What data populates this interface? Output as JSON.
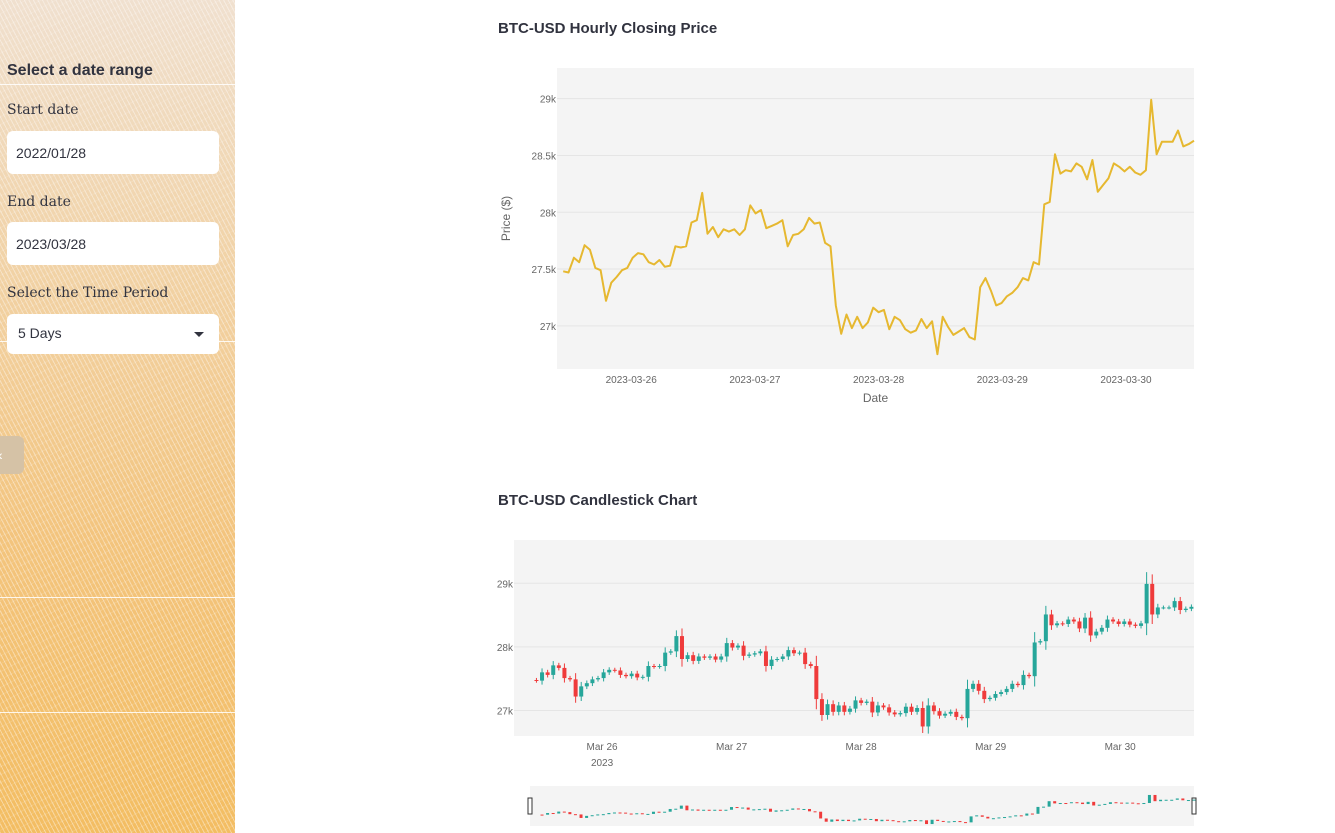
{
  "sidebar": {
    "title": "Select a date range",
    "start_date": {
      "label": "Start date",
      "value": "2022/01/28"
    },
    "end_date": {
      "label": "End date",
      "value": "2023/03/28"
    },
    "time_period": {
      "label": "Select the Time Period",
      "value": "5 Days"
    },
    "collapse_icon": "chevron-left-icon"
  },
  "chart_data": [
    {
      "type": "line",
      "title": "BTC-USD Hourly Closing Price",
      "xlabel": "Date",
      "ylabel": "Price ($)",
      "x_tick_labels": [
        "2023-03-26",
        "2023-03-27",
        "2023-03-28",
        "2023-03-29",
        "2023-03-30"
      ],
      "y_tick_labels": [
        "27k",
        "27.5k",
        "28k",
        "28.5k",
        "29k"
      ],
      "y_ticks": [
        27000,
        27500,
        28000,
        28500,
        29000
      ],
      "xlim_days": [
        -0.6,
        4.55
      ],
      "ylim": [
        26620,
        29270
      ],
      "line_color": "#e6b830",
      "plot_background": "#f4f4f4",
      "grid": true,
      "series": [
        {
          "values": [
            27480,
            27470,
            27600,
            27560,
            27710,
            27670,
            27510,
            27490,
            27220,
            27380,
            27430,
            27490,
            27510,
            27600,
            27640,
            27630,
            27560,
            27540,
            27580,
            27520,
            27530,
            27700,
            27690,
            27700,
            27910,
            27930,
            28170,
            27810,
            27870,
            27780,
            27850,
            27830,
            27850,
            27800,
            27850,
            28060,
            27990,
            28020,
            27860,
            27880,
            27900,
            27930,
            27700,
            27800,
            27810,
            27850,
            27950,
            27900,
            27910,
            27730,
            27700,
            27180,
            26930,
            27100,
            26980,
            27080,
            26980,
            27030,
            27160,
            27120,
            27140,
            26970,
            27080,
            27050,
            26970,
            26940,
            26960,
            27060,
            26980,
            27040,
            26750,
            27080,
            26990,
            26920,
            26950,
            26980,
            26900,
            26880,
            27340,
            27420,
            27310,
            27180,
            27200,
            27260,
            27290,
            27340,
            27420,
            27400,
            27560,
            27540,
            28070,
            28090,
            28510,
            28340,
            28370,
            28360,
            28430,
            28400,
            28290,
            28460,
            28180,
            28240,
            28300,
            28430,
            28400,
            28360,
            28400,
            28350,
            28330,
            28370,
            28990,
            28510,
            28620,
            28620,
            28620,
            28720,
            28580,
            28600,
            28630
          ]
        }
      ]
    },
    {
      "type": "candlestick",
      "title": "BTC-USD Candlestick Chart",
      "x_tick_labels": [
        "Mar 26",
        "Mar 27",
        "Mar 28",
        "Mar 29",
        "Mar 30"
      ],
      "x_tick_sublabel": "2023",
      "y_tick_labels": [
        "27k",
        "28k",
        "29k"
      ],
      "y_ticks": [
        27000,
        28000,
        29000
      ],
      "ylim": [
        26600,
        29680
      ],
      "up_color": "#26a69a",
      "down_color": "#ef3b3b",
      "plot_background": "#f4f4f4",
      "rangeslider": true
    }
  ]
}
